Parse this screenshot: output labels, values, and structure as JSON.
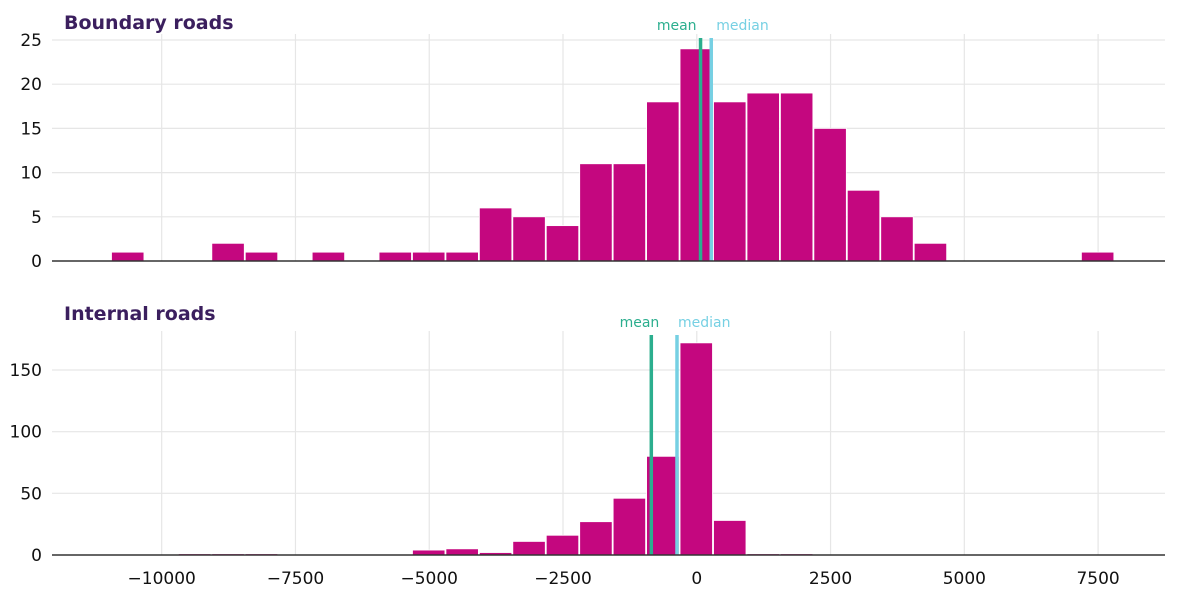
{
  "colors": {
    "bar": "#c4077f",
    "mean": "#2bae8e",
    "median": "#76d0e3",
    "grid": "#e6e6e6",
    "axis": "#333333",
    "title": "#3b1f5e"
  },
  "chart_data": [
    {
      "type": "bar",
      "title": "Boundary roads",
      "bin_width": 625,
      "bin_starts": [
        -10938,
        -10313,
        -9688,
        -9063,
        -8438,
        -7813,
        -7188,
        -6563,
        -5938,
        -5313,
        -4688,
        -4063,
        -3438,
        -2813,
        -2188,
        -1563,
        -938,
        -313,
        313,
        938,
        1563,
        2188,
        2813,
        3438,
        4063,
        4688,
        5313,
        5938,
        6563,
        7188
      ],
      "counts": [
        1,
        0,
        0,
        2,
        1,
        0,
        1,
        0,
        1,
        1,
        1,
        6,
        5,
        4,
        11,
        11,
        18,
        24,
        18,
        19,
        19,
        15,
        8,
        5,
        2,
        0,
        0,
        0,
        0,
        1
      ],
      "mean": 70,
      "median": 270,
      "mean_label": "mean",
      "median_label": "median",
      "xlim": [
        -12050,
        8750
      ],
      "ylim": [
        0,
        25
      ],
      "yticks": [
        0,
        5,
        10,
        15,
        20,
        25
      ],
      "grid": true
    },
    {
      "type": "bar",
      "title": "Internal roads",
      "bin_width": 625,
      "bin_starts": [
        -9688,
        -9063,
        -8438,
        -7813,
        -7188,
        -6563,
        -5938,
        -5313,
        -4688,
        -4063,
        -3438,
        -2813,
        -2188,
        -1563,
        -938,
        -313,
        313,
        938,
        1563,
        2188,
        2813,
        3438,
        4063,
        4688,
        5313,
        5938,
        6563,
        7188
      ],
      "counts": [
        1,
        1,
        1,
        0,
        0,
        0,
        0,
        4,
        5,
        2,
        11,
        16,
        27,
        46,
        80,
        172,
        28,
        1,
        1,
        0,
        0,
        0,
        0,
        0,
        0,
        0,
        0,
        0
      ],
      "mean": -850,
      "median": -370,
      "mean_label": "mean",
      "median_label": "median",
      "xlim": [
        -12050,
        8750
      ],
      "ylim": [
        0,
        180
      ],
      "yticks": [
        0,
        50,
        100,
        150
      ],
      "xticks": [
        -10000,
        -7500,
        -5000,
        -2500,
        0,
        2500,
        5000,
        7500
      ],
      "xtick_labels": [
        "−10000",
        "−7500",
        "−5000",
        "−2500",
        "0",
        "2500",
        "5000",
        "7500"
      ],
      "grid": true
    }
  ]
}
